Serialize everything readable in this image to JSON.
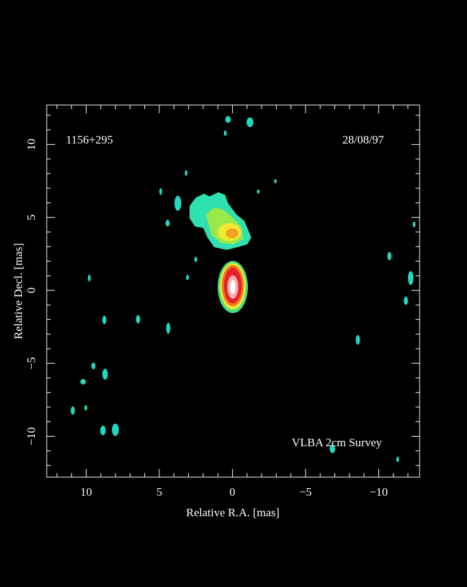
{
  "chart_data": {
    "type": "image",
    "annotations": [
      "1156+295",
      "28/08/97",
      "VLBA 2cm Survey"
    ],
    "xlabel": "Relative R.A. [mas]",
    "ylabel": "Relative Decl. [mas]",
    "xlim": [
      12.7,
      -12.8
    ],
    "ylim": [
      -12.8,
      12.7
    ],
    "xticks": [
      10,
      5,
      0,
      {
        "value": -5,
        "label": "−5"
      },
      {
        "value": -10,
        "label": "−10"
      }
    ],
    "yticks": [
      {
        "value": -10,
        "label": "−10"
      },
      {
        "value": -5,
        "label": "−5"
      },
      0,
      5,
      10
    ],
    "xminorticks": [
      12,
      11,
      9,
      8,
      7,
      6,
      4,
      3,
      2,
      1,
      -1,
      -2,
      -3,
      -4,
      -6,
      -7,
      -8,
      -9,
      -11,
      -12
    ],
    "yminorticks": [
      -12,
      -11,
      -9,
      -8,
      -7,
      -6,
      -4,
      -3,
      -2,
      -1,
      1,
      2,
      3,
      4,
      6,
      7,
      8,
      9,
      11,
      12
    ]
  }
}
